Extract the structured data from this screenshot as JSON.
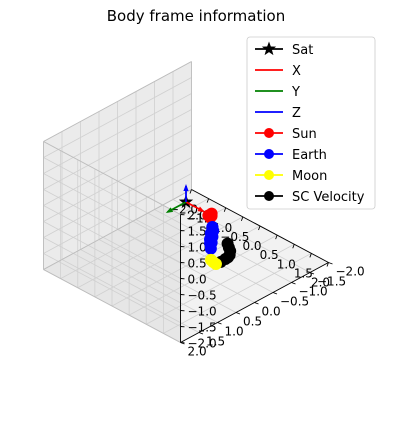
{
  "chart_data": {
    "type": "scatter",
    "projection": "3d",
    "title": "Body frame information",
    "xlabel": "",
    "ylabel": "",
    "zlabel": "",
    "xlim": [
      -2.0,
      2.0
    ],
    "ylim": [
      -2.0,
      2.0
    ],
    "zlim": [
      -2.0,
      2.0
    ],
    "xticks": [
      "−2.0",
      "−1.5",
      "−1.0",
      "−0.5",
      "0.0",
      "0.5",
      "1.0",
      "1.5",
      "2.0"
    ],
    "yticks": [
      "−2.0",
      "−1.5",
      "−1.0",
      "−0.5",
      "0.0",
      "0.5",
      "1.0",
      "1.5",
      "2.0"
    ],
    "zticks": [
      "−2.0",
      "−1.5",
      "−1.0",
      "−0.5",
      "0.0",
      "0.5",
      "1.0",
      "1.5",
      "2.0"
    ],
    "grid": true,
    "legend_position": "top-right",
    "series": [
      {
        "name": "Sat",
        "kind": "marker",
        "marker": "star",
        "color": "#000000",
        "points": [
          [
            0.0,
            0.0,
            0.0
          ]
        ]
      },
      {
        "name": "X",
        "kind": "line",
        "color": "#ff0000",
        "points": [
          [
            0.0,
            0.0,
            0.0
          ],
          [
            0.5,
            0.0,
            0.0
          ]
        ]
      },
      {
        "name": "Y",
        "kind": "line",
        "color": "#008000",
        "points": [
          [
            0.0,
            0.0,
            0.0
          ],
          [
            0.0,
            0.5,
            0.0
          ]
        ]
      },
      {
        "name": "Z",
        "kind": "line",
        "color": "#0000ff",
        "points": [
          [
            0.0,
            0.0,
            0.0
          ],
          [
            0.0,
            0.0,
            0.5
          ]
        ]
      },
      {
        "name": "Sun",
        "kind": "marker",
        "marker": "circle",
        "color": "#ff0000",
        "points": [
          [
            -0.55,
            -1.2,
            -1.5
          ],
          [
            -0.58,
            -1.19,
            -1.56
          ],
          [
            -0.61,
            -1.17,
            -1.5
          ],
          [
            -0.57,
            -1.22,
            -1.45
          ]
        ]
      },
      {
        "name": "Earth",
        "kind": "marker",
        "marker": "circle",
        "color": "#0000ff",
        "points": [
          [
            1.46,
            0.68,
            -0.2
          ],
          [
            1.44,
            0.64,
            -0.05
          ],
          [
            1.42,
            0.6,
            0.1
          ],
          [
            1.4,
            0.56,
            0.25
          ],
          [
            1.42,
            0.6,
            0.4
          ],
          [
            1.46,
            0.64,
            0.45
          ],
          [
            1.48,
            0.7,
            0.3
          ],
          [
            1.5,
            0.74,
            0.15
          ],
          [
            1.48,
            0.72,
            0.0
          ]
        ]
      },
      {
        "name": "Moon",
        "kind": "marker",
        "marker": "circle",
        "color": "#ffff00",
        "points": [
          [
            1.46,
            0.62,
            -0.65
          ],
          [
            1.5,
            0.58,
            -0.72
          ],
          [
            1.42,
            0.64,
            -0.6
          ]
        ]
      },
      {
        "name": "SC Velocity",
        "kind": "marker",
        "marker": "circle",
        "color": "#000000",
        "points": [
          [
            0.35,
            -0.8,
            -1.6
          ],
          [
            0.55,
            -0.65,
            -1.52
          ],
          [
            0.75,
            -0.5,
            -1.42
          ],
          [
            0.95,
            -0.3,
            -1.3
          ],
          [
            1.12,
            -0.1,
            -1.15
          ],
          [
            1.26,
            0.1,
            -1.0
          ],
          [
            1.34,
            0.3,
            -0.92
          ]
        ]
      }
    ]
  }
}
